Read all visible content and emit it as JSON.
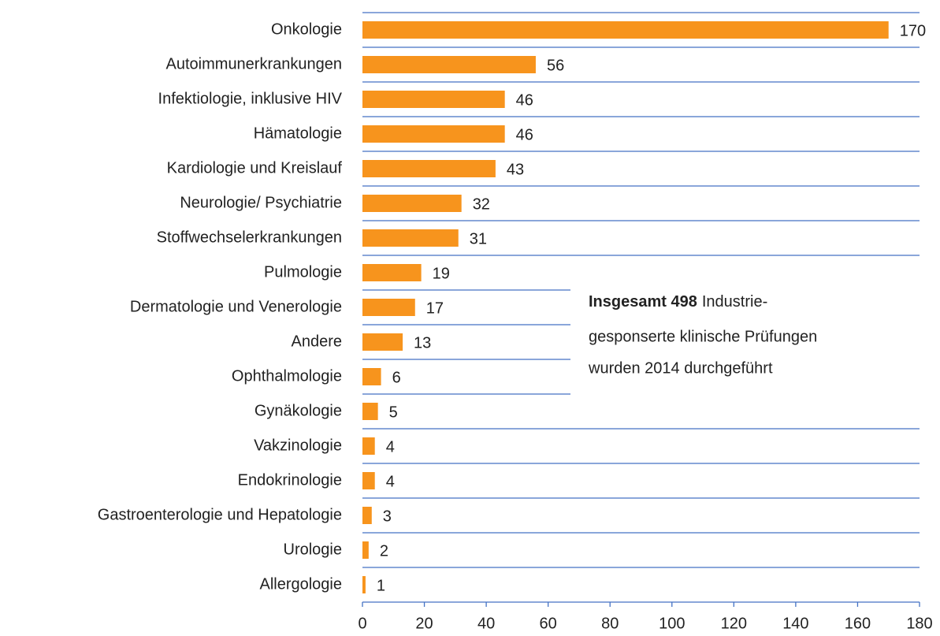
{
  "chart_data": {
    "type": "bar",
    "orientation": "horizontal",
    "categories": [
      "Onkologie",
      "Autoimmunerkrankungen",
      "Infektiologie, inklusive HIV",
      "Hämatologie",
      "Kardiologie und Kreislauf",
      "Neurologie/ Psychiatrie",
      "Stoffwechselerkrankungen",
      "Pulmologie",
      "Dermatologie und Venerologie",
      "Andere",
      "Ophthalmologie",
      "Gynäkologie",
      "Vakzinologie",
      "Endokrinologie",
      "Gastroenterologie und Hepatologie",
      "Urologie",
      "Allergologie"
    ],
    "values": [
      170,
      56,
      46,
      46,
      43,
      32,
      31,
      19,
      17,
      13,
      6,
      5,
      4,
      4,
      3,
      2,
      1
    ],
    "color": "#f7941d",
    "grid_color": "#4472c4",
    "xlim": [
      0,
      180
    ],
    "xticks": [
      0,
      20,
      40,
      60,
      80,
      100,
      120,
      140,
      160,
      180
    ],
    "annotation": {
      "bold": "Insgesamt 498",
      "lines": [
        "Industrie-",
        "gesponserte klinische Prüfungen",
        "wurden 2014 durchgeführt"
      ]
    }
  }
}
